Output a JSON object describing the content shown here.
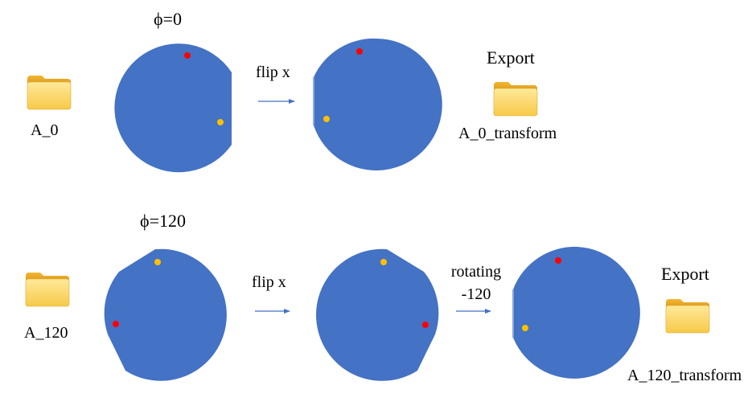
{
  "rows": [
    {
      "phi_label": "ϕ=0",
      "source_folder": {
        "label": "A_0",
        "icon": "folder-icon"
      },
      "steps": [
        {
          "label_lines": [
            "flip x"
          ]
        }
      ],
      "export": {
        "title": "Export",
        "label": "A_0_transform",
        "icon": "folder-icon"
      }
    },
    {
      "phi_label": "ϕ=120",
      "source_folder": {
        "label": "A_120",
        "icon": "folder-icon"
      },
      "steps": [
        {
          "label_lines": [
            "flip x"
          ]
        },
        {
          "label_lines": [
            "rotating",
            "-120"
          ]
        }
      ],
      "export": {
        "title": "Export",
        "label": "A_120_transform",
        "icon": "folder-icon"
      }
    }
  ],
  "colors": {
    "wafer": "#4472C4",
    "arrow": "#4472C4",
    "red_dot": "#FF0000",
    "yellow_dot": "#FFC000",
    "folder_back": "#E6A817",
    "folder_front": "#FFE082"
  }
}
